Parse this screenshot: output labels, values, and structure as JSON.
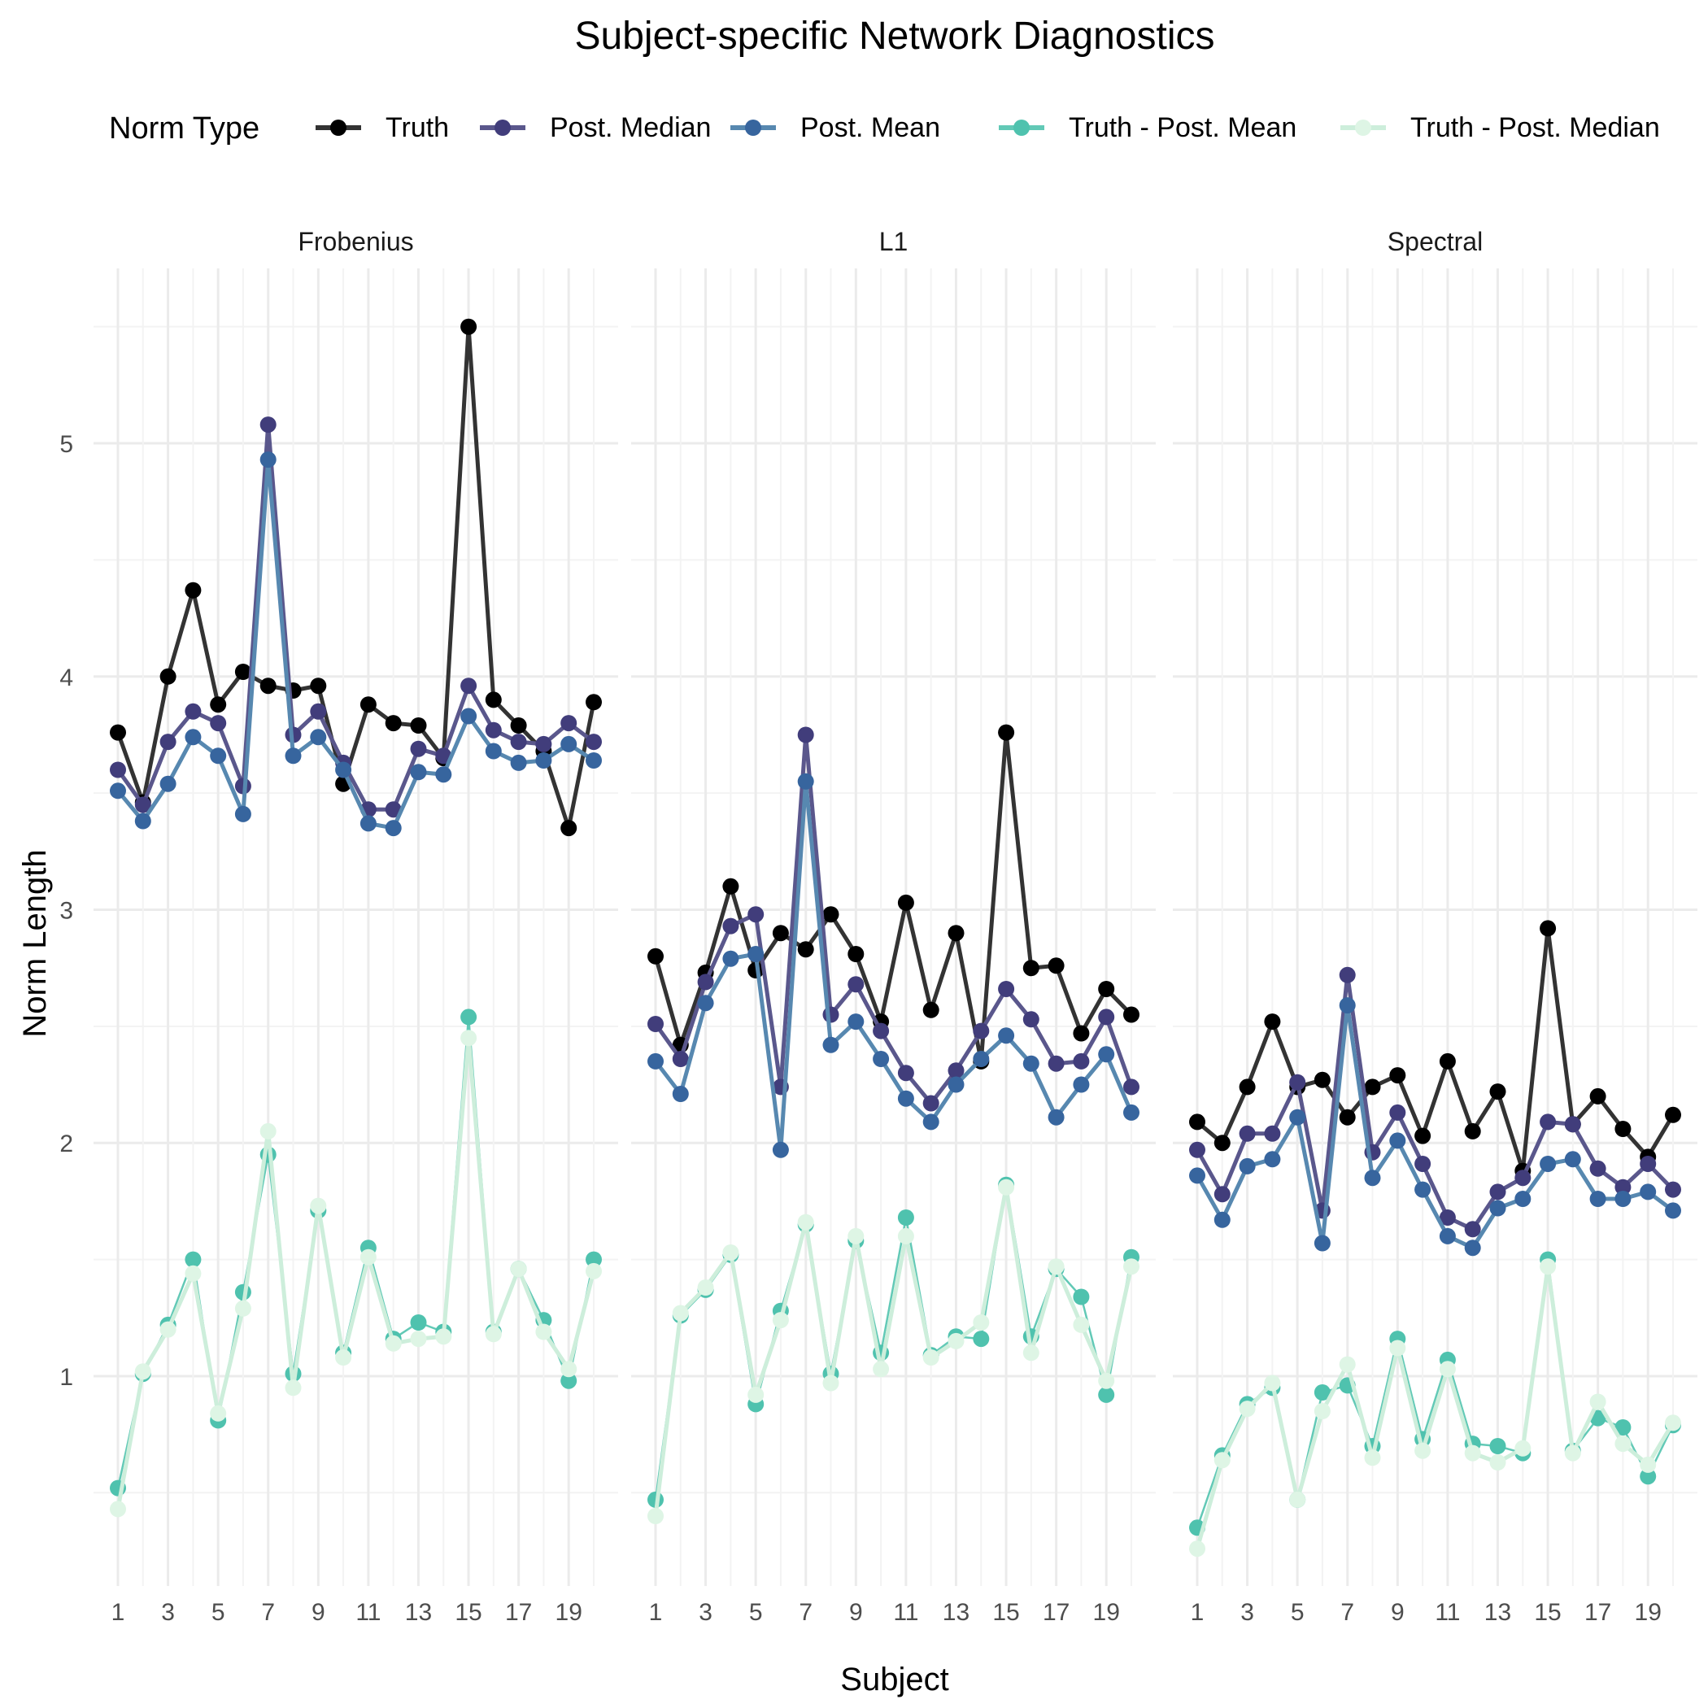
{
  "chart_data": {
    "type": "line",
    "title": "Subject-specific Network Diagnostics",
    "xlabel": "Subject",
    "ylabel": "Norm Length",
    "legend_title": "Norm Type",
    "legend_position": "top",
    "grid": true,
    "ylim": [
      0.1,
      5.75
    ],
    "y_ticks": [
      1,
      2,
      3,
      4,
      5
    ],
    "x_ticks": [
      1,
      3,
      5,
      7,
      9,
      11,
      13,
      15,
      17,
      19
    ],
    "x": [
      1,
      2,
      3,
      4,
      5,
      6,
      7,
      8,
      9,
      10,
      11,
      12,
      13,
      14,
      15,
      16,
      17,
      18,
      19,
      20
    ],
    "series_styles": [
      {
        "name": "Truth",
        "color": "#000000",
        "line_color": "#333333",
        "line_width": 5
      },
      {
        "name": "Post. Median",
        "color": "#413d7b",
        "line_color": "#5a578c",
        "line_width": 5
      },
      {
        "name": "Post. Mean",
        "color": "#37659e",
        "line_color": "#5788b0",
        "line_width": 5
      },
      {
        "name": "Truth - Post. Mean",
        "color": "#4fc2ae",
        "line_color": "#62c9b6",
        "line_width": 2.5
      },
      {
        "name": "Truth - Post. Median",
        "color": "#def5e5",
        "line_color": "#cdeedb",
        "line_width": 5
      }
    ],
    "panels": [
      {
        "label": "Frobenius",
        "series": [
          {
            "name": "Truth",
            "values": [
              3.76,
              3.46,
              4.0,
              4.37,
              3.88,
              4.02,
              3.96,
              3.94,
              3.96,
              3.54,
              3.88,
              3.8,
              3.79,
              3.65,
              5.5,
              3.9,
              3.79,
              3.68,
              3.35,
              3.89
            ]
          },
          {
            "name": "Post. Median",
            "values": [
              3.6,
              3.45,
              3.72,
              3.85,
              3.8,
              3.53,
              5.08,
              3.75,
              3.85,
              3.63,
              3.43,
              3.43,
              3.69,
              3.66,
              3.96,
              3.77,
              3.72,
              3.71,
              3.8,
              3.72
            ]
          },
          {
            "name": "Post. Mean",
            "values": [
              3.51,
              3.38,
              3.54,
              3.74,
              3.66,
              3.41,
              4.93,
              3.66,
              3.74,
              3.6,
              3.37,
              3.35,
              3.59,
              3.58,
              3.83,
              3.68,
              3.63,
              3.64,
              3.71,
              3.64
            ]
          },
          {
            "name": "Truth - Post. Mean",
            "values": [
              0.52,
              1.01,
              1.22,
              1.5,
              0.81,
              1.36,
              1.95,
              1.01,
              1.71,
              1.1,
              1.55,
              1.16,
              1.23,
              1.19,
              2.54,
              1.19,
              1.46,
              1.24,
              0.98,
              1.5
            ]
          },
          {
            "name": "Truth - Post. Median",
            "values": [
              0.43,
              1.02,
              1.2,
              1.44,
              0.84,
              1.29,
              2.05,
              0.95,
              1.73,
              1.08,
              1.51,
              1.14,
              1.16,
              1.17,
              2.45,
              1.18,
              1.46,
              1.19,
              1.03,
              1.45
            ]
          }
        ]
      },
      {
        "label": "L1",
        "series": [
          {
            "name": "Truth",
            "values": [
              2.8,
              2.42,
              2.73,
              3.1,
              2.74,
              2.9,
              2.83,
              2.98,
              2.81,
              2.52,
              3.03,
              2.57,
              2.9,
              2.35,
              3.76,
              2.75,
              2.76,
              2.47,
              2.66,
              2.55
            ]
          },
          {
            "name": "Post. Median",
            "values": [
              2.51,
              2.36,
              2.69,
              2.93,
              2.98,
              2.24,
              3.75,
              2.55,
              2.68,
              2.48,
              2.3,
              2.17,
              2.31,
              2.48,
              2.66,
              2.53,
              2.34,
              2.35,
              2.54,
              2.24
            ]
          },
          {
            "name": "Post. Mean",
            "values": [
              2.35,
              2.21,
              2.6,
              2.79,
              2.81,
              1.97,
              3.55,
              2.42,
              2.52,
              2.36,
              2.19,
              2.09,
              2.25,
              2.36,
              2.46,
              2.34,
              2.11,
              2.25,
              2.38,
              2.13
            ]
          },
          {
            "name": "Truth - Post. Mean",
            "values": [
              0.47,
              1.26,
              1.37,
              1.52,
              0.88,
              1.28,
              1.65,
              1.01,
              1.58,
              1.1,
              1.68,
              1.09,
              1.17,
              1.16,
              1.82,
              1.17,
              1.46,
              1.34,
              0.92,
              1.51
            ]
          },
          {
            "name": "Truth - Post. Median",
            "values": [
              0.4,
              1.27,
              1.38,
              1.53,
              0.92,
              1.24,
              1.66,
              0.97,
              1.6,
              1.03,
              1.6,
              1.08,
              1.15,
              1.23,
              1.81,
              1.1,
              1.47,
              1.22,
              0.98,
              1.47
            ]
          }
        ]
      },
      {
        "label": "Spectral",
        "series": [
          {
            "name": "Truth",
            "values": [
              2.09,
              2.0,
              2.24,
              2.52,
              2.24,
              2.27,
              2.11,
              2.24,
              2.29,
              2.03,
              2.35,
              2.05,
              2.22,
              1.88,
              2.92,
              2.08,
              2.2,
              2.06,
              1.94,
              2.12
            ]
          },
          {
            "name": "Post. Median",
            "values": [
              1.97,
              1.78,
              2.04,
              2.04,
              2.26,
              1.71,
              2.72,
              1.96,
              2.13,
              1.91,
              1.68,
              1.63,
              1.79,
              1.85,
              2.09,
              2.08,
              1.89,
              1.81,
              1.91,
              1.8
            ]
          },
          {
            "name": "Post. Mean",
            "values": [
              1.86,
              1.67,
              1.9,
              1.93,
              2.11,
              1.57,
              2.59,
              1.85,
              2.01,
              1.8,
              1.6,
              1.55,
              1.72,
              1.76,
              1.91,
              1.93,
              1.76,
              1.76,
              1.79,
              1.71
            ]
          },
          {
            "name": "Truth - Post. Mean",
            "values": [
              0.35,
              0.66,
              0.88,
              0.95,
              0.47,
              0.93,
              0.96,
              0.7,
              1.16,
              0.73,
              1.07,
              0.71,
              0.7,
              0.67,
              1.5,
              0.68,
              0.82,
              0.78,
              0.57,
              0.79
            ]
          },
          {
            "name": "Truth - Post. Median",
            "values": [
              0.26,
              0.64,
              0.86,
              0.97,
              0.47,
              0.85,
              1.05,
              0.65,
              1.12,
              0.68,
              1.03,
              0.67,
              0.63,
              0.69,
              1.47,
              0.67,
              0.89,
              0.71,
              0.62,
              0.8
            ]
          }
        ]
      }
    ]
  }
}
